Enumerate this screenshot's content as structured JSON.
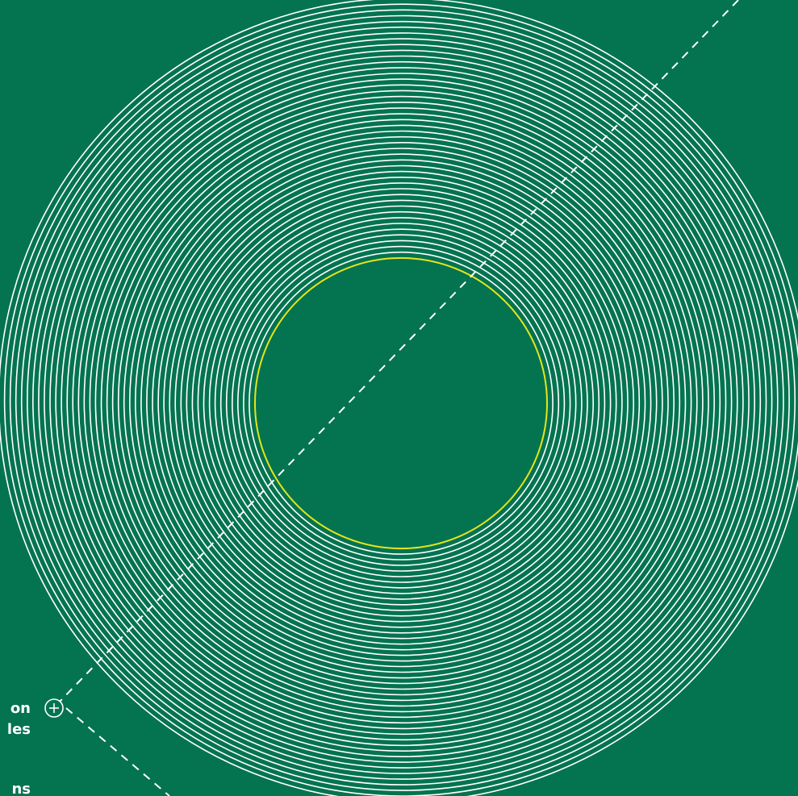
{
  "colors": {
    "background": "#047350",
    "rings": "#ffffff",
    "highlight_ring": "#e5e51a",
    "dashes": "#ffffff"
  },
  "label": {
    "line1": "on",
    "line2": "les",
    "line3": "ns"
  },
  "marker": {
    "icon": "plus-circle-icon"
  }
}
